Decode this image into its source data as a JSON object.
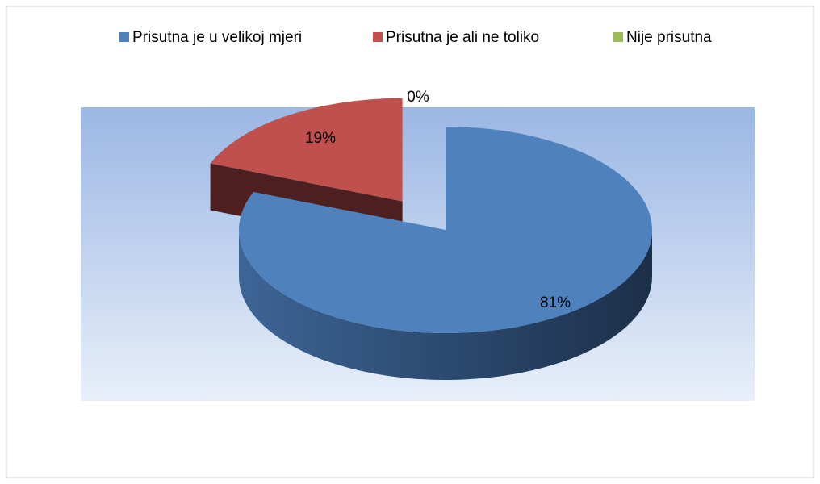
{
  "chart_data": {
    "type": "pie",
    "categories": [
      "Prisutna je u velikoj mjeri",
      "Prisutna je ali ne toliko",
      "Nije prisutna"
    ],
    "values": [
      81,
      19,
      0
    ],
    "value_labels": [
      "81%",
      "19%",
      "0%"
    ],
    "colors": [
      "#4f81bd",
      "#c0504d",
      "#9bbb59"
    ],
    "legend": "top"
  }
}
